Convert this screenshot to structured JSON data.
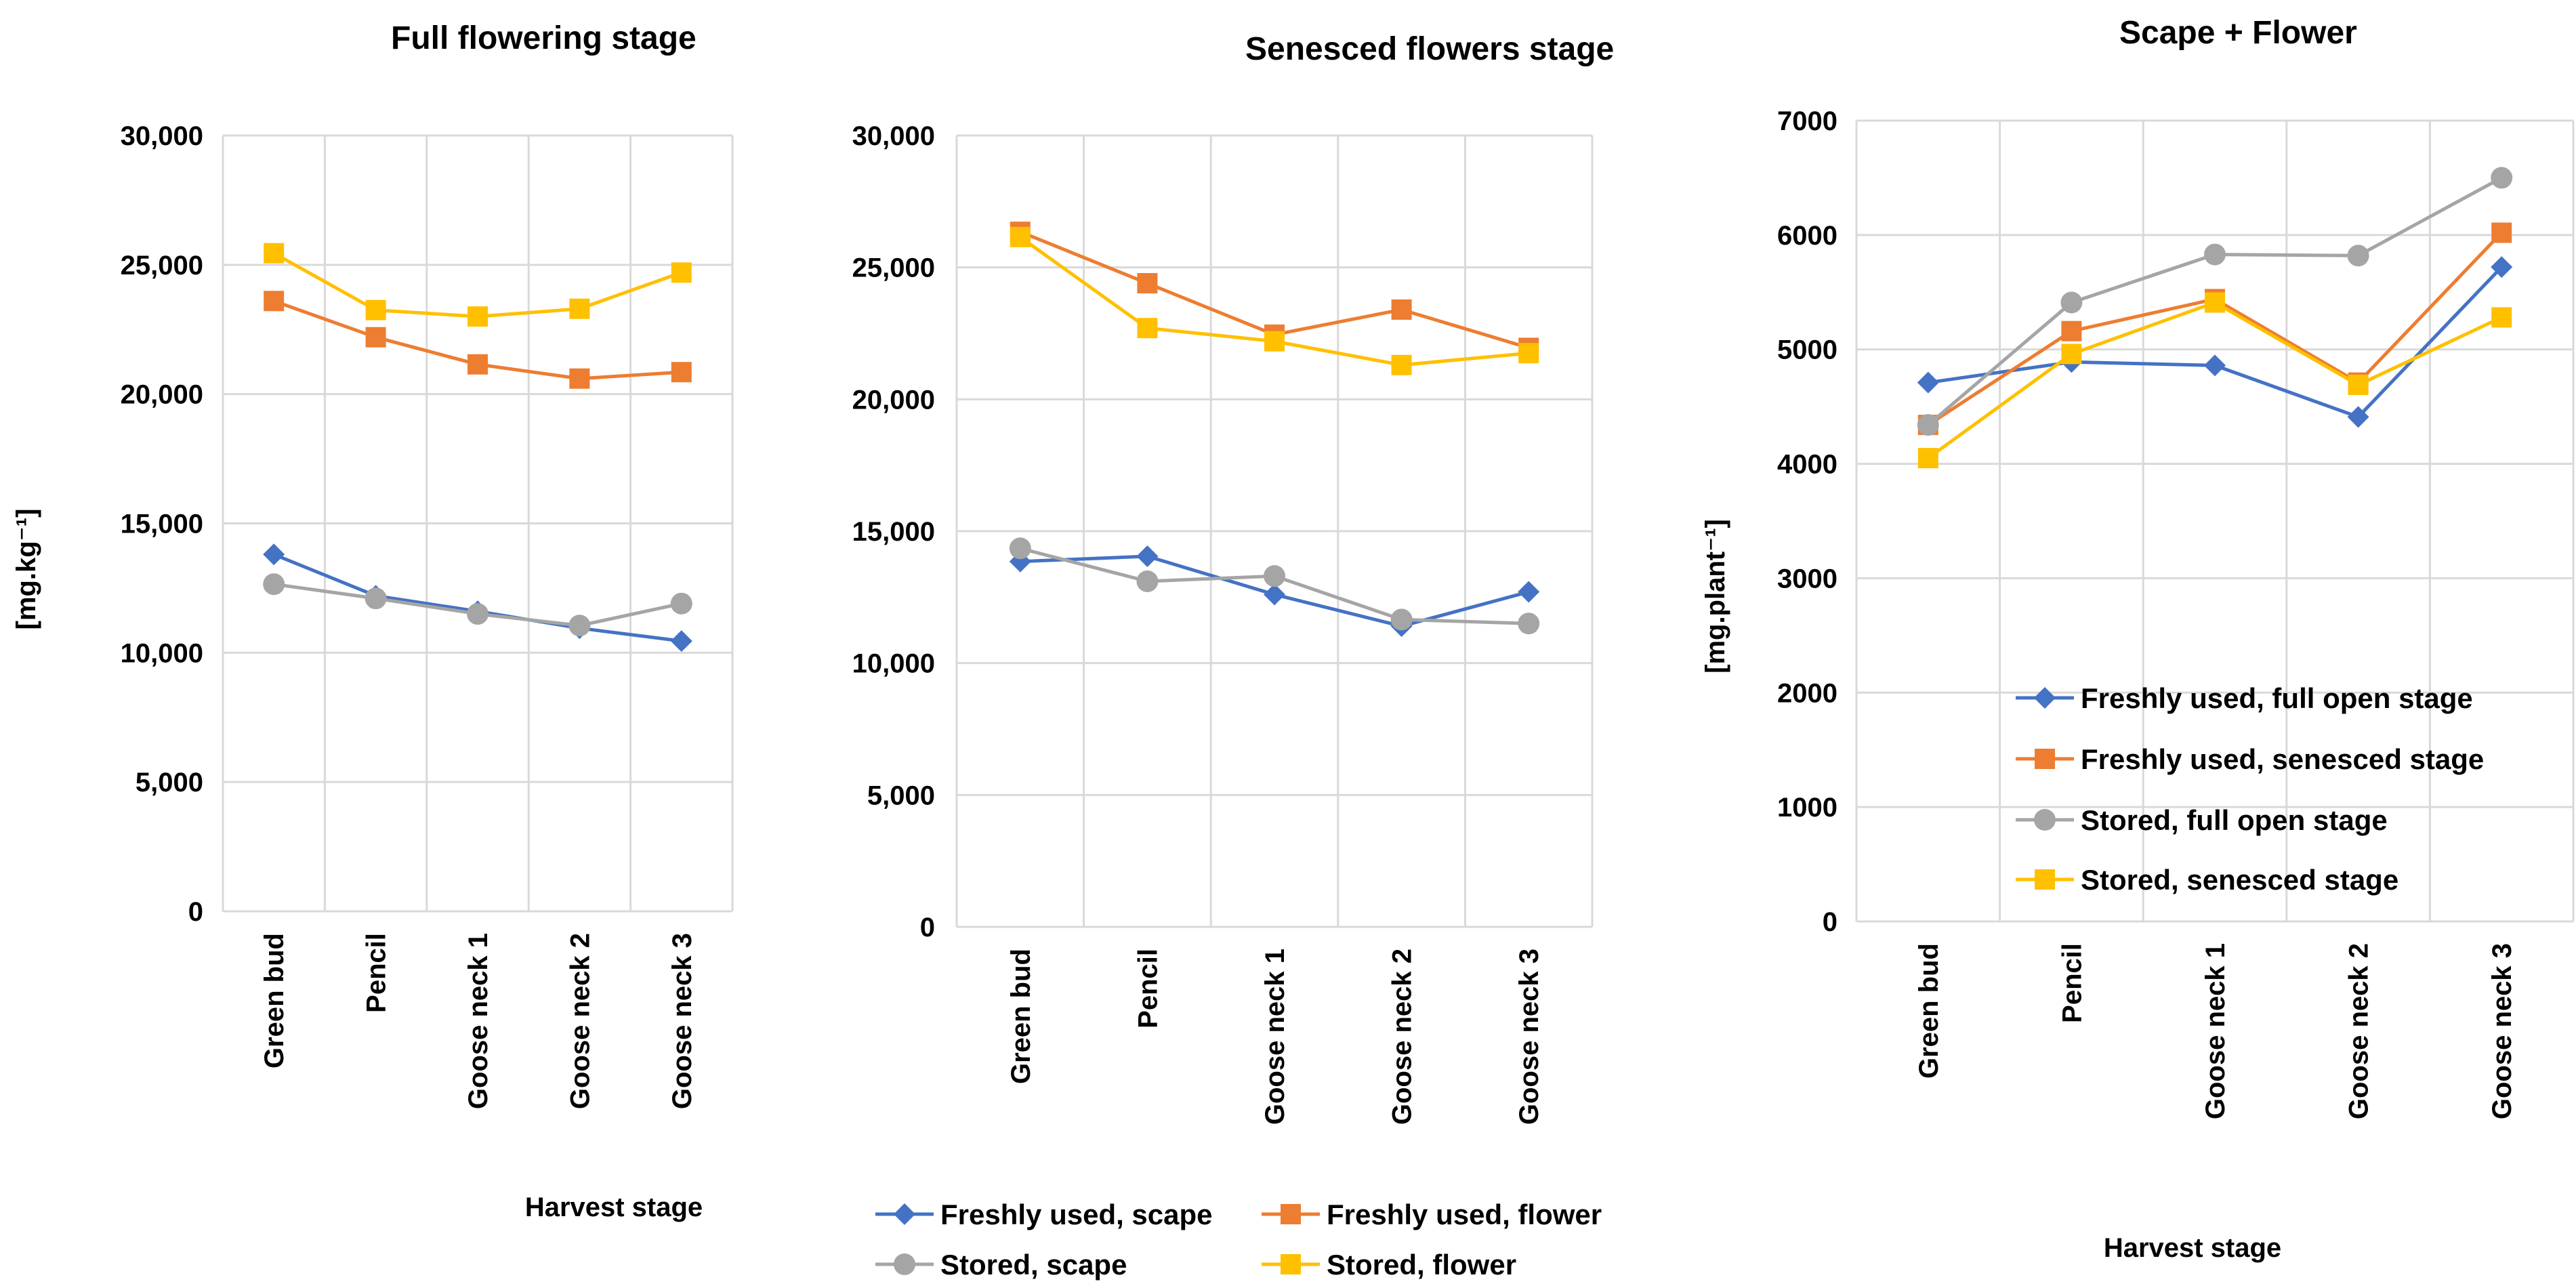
{
  "chart_data": [
    {
      "id": "p1",
      "type": "line",
      "title": "Full flowering stage",
      "xlabel": "Harvest stage",
      "ylabel": "[mg.kg⁻¹]",
      "categories": [
        "Green bud",
        "Pencil",
        "Goose neck 1",
        "Goose neck 2",
        "Goose neck 3"
      ],
      "ylim": [
        0,
        30000
      ],
      "yticks": [
        0,
        5000,
        10000,
        15000,
        20000,
        25000,
        30000
      ],
      "ytick_labels": [
        "0",
        "5,000",
        "10,000",
        "15,000",
        "20,000",
        "25,000",
        "30,000"
      ],
      "grid": true,
      "series": [
        {
          "name": "Freshly used, scape",
          "color": "#4472C4",
          "marker": "diamond",
          "values": [
            13800,
            12200,
            11600,
            10950,
            10450
          ]
        },
        {
          "name": "Freshly used, flower",
          "color": "#ED7D31",
          "marker": "square",
          "values": [
            23600,
            22200,
            21150,
            20600,
            20850
          ]
        },
        {
          "name": "Stored, scape",
          "color": "#A5A5A5",
          "marker": "circle",
          "values": [
            12650,
            12100,
            11500,
            11050,
            11900
          ]
        },
        {
          "name": "Stored, flower",
          "color": "#FFC000",
          "marker": "square",
          "values": [
            25450,
            23250,
            23000,
            23300,
            24700
          ]
        }
      ]
    },
    {
      "id": "p2",
      "type": "line",
      "title": "Senesced flowers stage",
      "xlabel": "",
      "ylabel": "",
      "categories": [
        "Green bud",
        "Pencil",
        "Goose neck 1",
        "Goose neck 2",
        "Goose neck 3"
      ],
      "ylim": [
        0,
        30000
      ],
      "yticks": [
        0,
        5000,
        10000,
        15000,
        20000,
        25000,
        30000
      ],
      "ytick_labels": [
        "0",
        "5,000",
        "10,000",
        "15,000",
        "20,000",
        "25,000",
        "30,000"
      ],
      "grid": true,
      "series": [
        {
          "name": "Freshly used, scape",
          "color": "#4472C4",
          "marker": "diamond",
          "values": [
            13850,
            14050,
            12600,
            11400,
            12700
          ]
        },
        {
          "name": "Freshly used, flower",
          "color": "#ED7D31",
          "marker": "square",
          "values": [
            26350,
            24400,
            22450,
            23400,
            21950
          ]
        },
        {
          "name": "Stored, scape",
          "color": "#A5A5A5",
          "marker": "circle",
          "values": [
            14350,
            13100,
            13300,
            11650,
            11500
          ]
        },
        {
          "name": "Stored, flower",
          "color": "#FFC000",
          "marker": "square",
          "values": [
            26150,
            22700,
            22200,
            21300,
            21750
          ]
        }
      ],
      "legend": {
        "placement": "bottom",
        "entries": [
          "Freshly used, scape",
          "Freshly used, flower",
          "Stored, scape",
          "Stored, flower"
        ]
      }
    },
    {
      "id": "p3",
      "type": "line",
      "title": "Scape + Flower",
      "xlabel": "Harvest stage",
      "ylabel": "[mg.plant⁻¹]",
      "categories": [
        "Green bud",
        "Pencil",
        "Goose neck 1",
        "Goose neck 2",
        "Goose neck 3"
      ],
      "ylim": [
        0,
        7000
      ],
      "yticks": [
        0,
        1000,
        2000,
        3000,
        4000,
        5000,
        6000,
        7000
      ],
      "ytick_labels": [
        "0",
        "1000",
        "2000",
        "3000",
        "4000",
        "5000",
        "6000",
        "7000"
      ],
      "grid": true,
      "series": [
        {
          "name": "Freshly used, full open stage",
          "color": "#4472C4",
          "marker": "diamond",
          "values": [
            4710,
            4890,
            4860,
            4410,
            5720
          ]
        },
        {
          "name": "Freshly used, senesced stage",
          "color": "#ED7D31",
          "marker": "square",
          "values": [
            4340,
            5160,
            5440,
            4710,
            6020
          ]
        },
        {
          "name": "Stored, full open stage",
          "color": "#A5A5A5",
          "marker": "circle",
          "values": [
            4340,
            5410,
            5830,
            5820,
            6500
          ]
        },
        {
          "name": "Stored, senesced stage",
          "color": "#FFC000",
          "marker": "square",
          "values": [
            4050,
            4960,
            5410,
            4690,
            5280
          ]
        }
      ],
      "legend": {
        "placement": "inside lower-center",
        "entries": [
          "Freshly used, full open stage",
          "Freshly used, senesced stage",
          "Stored, full open stage",
          "Stored, senesced stage"
        ]
      }
    }
  ]
}
